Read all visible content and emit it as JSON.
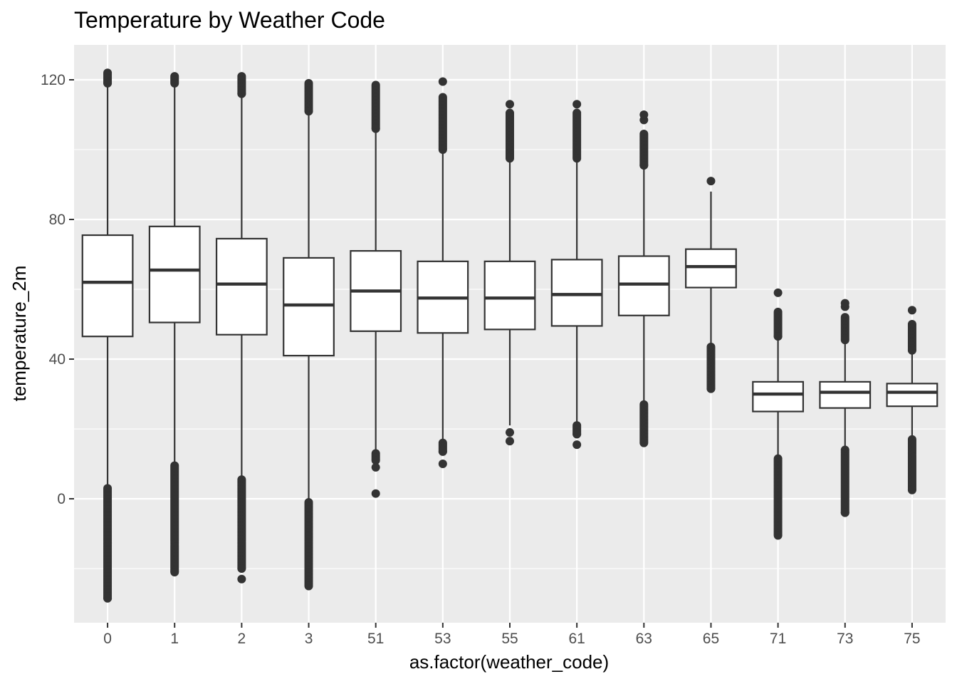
{
  "chart_data": {
    "type": "boxplot",
    "title": "Temperature by Weather Code",
    "xlabel": "as.factor(weather_code)",
    "ylabel": "temperature_2m",
    "ylim": [
      -35.5,
      130
    ],
    "yticks": [
      0,
      40,
      80,
      120
    ],
    "grid": true,
    "categories": [
      "0",
      "1",
      "2",
      "3",
      "51",
      "53",
      "55",
      "61",
      "63",
      "65",
      "71",
      "73",
      "75"
    ],
    "boxes": [
      {
        "category": "0",
        "whisker_low": 3,
        "q1": 46.5,
        "median": 62,
        "q3": 75.5,
        "whisker_high": 119,
        "outliers_high": {
          "from": 119,
          "to": 122
        },
        "outliers_low": {
          "from": -28.5,
          "to": 3
        }
      },
      {
        "category": "1",
        "whisker_low": 9.5,
        "q1": 50.5,
        "median": 65.5,
        "q3": 78,
        "whisker_high": 119,
        "outliers_high": {
          "from": 119,
          "to": 121
        },
        "outliers_low": {
          "from": -21,
          "to": 9.5
        }
      },
      {
        "category": "2",
        "whisker_low": 5.5,
        "q1": 47,
        "median": 61.5,
        "q3": 74.5,
        "whisker_high": 116,
        "outliers_high": {
          "from": 116,
          "to": 121
        },
        "outliers_low": {
          "from": -20,
          "to": 5.5
        },
        "outliers_extra": [
          -23
        ]
      },
      {
        "category": "3",
        "whisker_low": -1,
        "q1": 41,
        "median": 55.5,
        "q3": 69,
        "whisker_high": 111,
        "outliers_high": {
          "from": 111,
          "to": 119
        },
        "outliers_low": {
          "from": -25,
          "to": -1
        }
      },
      {
        "category": "51",
        "whisker_low": 13,
        "q1": 48,
        "median": 59.5,
        "q3": 71,
        "whisker_high": 106,
        "outliers_high": {
          "from": 106,
          "to": 118.5
        },
        "outliers_low": {
          "from": 11,
          "to": 13
        },
        "outliers_extra": [
          9,
          1.5
        ]
      },
      {
        "category": "53",
        "whisker_low": 16,
        "q1": 47.5,
        "median": 57.5,
        "q3": 68,
        "whisker_high": 99,
        "outliers_high": {
          "from": 100,
          "to": 115
        },
        "outliers_low": {
          "from": 13.5,
          "to": 16
        },
        "outliers_extra": [
          119.5,
          10
        ]
      },
      {
        "category": "55",
        "whisker_low": 21,
        "q1": 48.5,
        "median": 57.5,
        "q3": 68,
        "whisker_high": 97,
        "outliers_high": {
          "from": 97.5,
          "to": 110.5
        },
        "outliers_extra": [
          113,
          19,
          16.5
        ]
      },
      {
        "category": "61",
        "whisker_low": 22,
        "q1": 49.5,
        "median": 58.5,
        "q3": 68.5,
        "whisker_high": 97,
        "outliers_high": {
          "from": 97.5,
          "to": 110.5
        },
        "outliers_low": {
          "from": 18.5,
          "to": 21
        },
        "outliers_extra": [
          113,
          15.5
        ]
      },
      {
        "category": "63",
        "whisker_low": 27,
        "q1": 52.5,
        "median": 61.5,
        "q3": 69.5,
        "whisker_high": 95,
        "outliers_high": {
          "from": 95.5,
          "to": 104.5
        },
        "outliers_low": {
          "from": 16,
          "to": 27
        },
        "outliers_extra": [
          108.5,
          110
        ]
      },
      {
        "category": "65",
        "whisker_low": 44,
        "q1": 60.5,
        "median": 66.5,
        "q3": 71.5,
        "whisker_high": 88,
        "outliers_low": {
          "from": 31.5,
          "to": 43.5
        },
        "outliers_extra": [
          91
        ]
      },
      {
        "category": "71",
        "whisker_low": 12,
        "q1": 25,
        "median": 30,
        "q3": 33.5,
        "whisker_high": 46,
        "outliers_high": {
          "from": 46.5,
          "to": 53.5
        },
        "outliers_low": {
          "from": -10.5,
          "to": 11.5
        },
        "outliers_extra": [
          59
        ]
      },
      {
        "category": "73",
        "whisker_low": 14,
        "q1": 26,
        "median": 30.5,
        "q3": 33.5,
        "whisker_high": 45,
        "outliers_high": {
          "from": 45.5,
          "to": 52
        },
        "outliers_low": {
          "from": -4,
          "to": 14
        },
        "outliers_extra": [
          55,
          56
        ]
      },
      {
        "category": "75",
        "whisker_low": 17,
        "q1": 26.5,
        "median": 30.5,
        "q3": 33,
        "whisker_high": 42,
        "outliers_high": {
          "from": 42.5,
          "to": 50
        },
        "outliers_low": {
          "from": 2.5,
          "to": 17
        },
        "outliers_extra": [
          54
        ]
      }
    ],
    "colors": {
      "panel": "#ebebeb",
      "grid": "#ffffff",
      "box_fill": "#ffffff",
      "box_line": "#333333",
      "tick_text": "#4d4d4d"
    }
  }
}
